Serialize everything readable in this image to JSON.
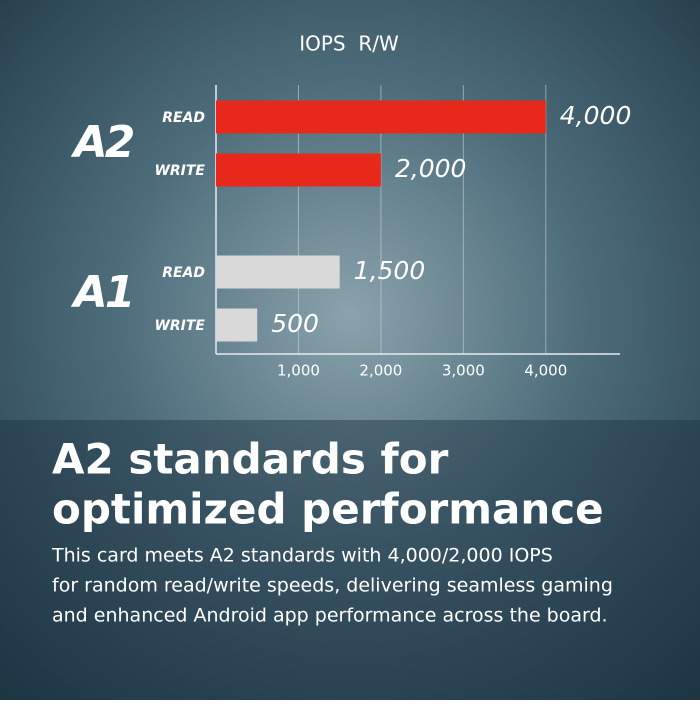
{
  "chart_data": {
    "type": "bar",
    "orientation": "horizontal",
    "title": "IOPS  R/W",
    "groups": [
      {
        "name": "A2",
        "color": "#e8281a",
        "categories": [
          "READ",
          "WRITE"
        ],
        "values": [
          4000,
          2000
        ],
        "value_labels": [
          "4,000",
          "2,000"
        ]
      },
      {
        "name": "A1",
        "color": "#d9d9d9",
        "categories": [
          "READ",
          "WRITE"
        ],
        "values": [
          1500,
          500
        ],
        "value_labels": [
          "1,500",
          "500"
        ]
      }
    ],
    "xlim": [
      0,
      4900
    ],
    "xticks": [
      {
        "value": 1000,
        "label": "1,000"
      },
      {
        "value": 2000,
        "label": "2,000"
      },
      {
        "value": 3000,
        "label": "3,000"
      },
      {
        "value": 4000,
        "label": "4,000"
      }
    ],
    "grid": true
  },
  "headline": [
    "A2 standards for",
    "optimized performance"
  ],
  "body": [
    "This card meets A2 standards with 4,000/2,000 IOPS",
    "for random read/write speeds, delivering seamless gaming",
    "and enhanced Android app performance across the board."
  ]
}
